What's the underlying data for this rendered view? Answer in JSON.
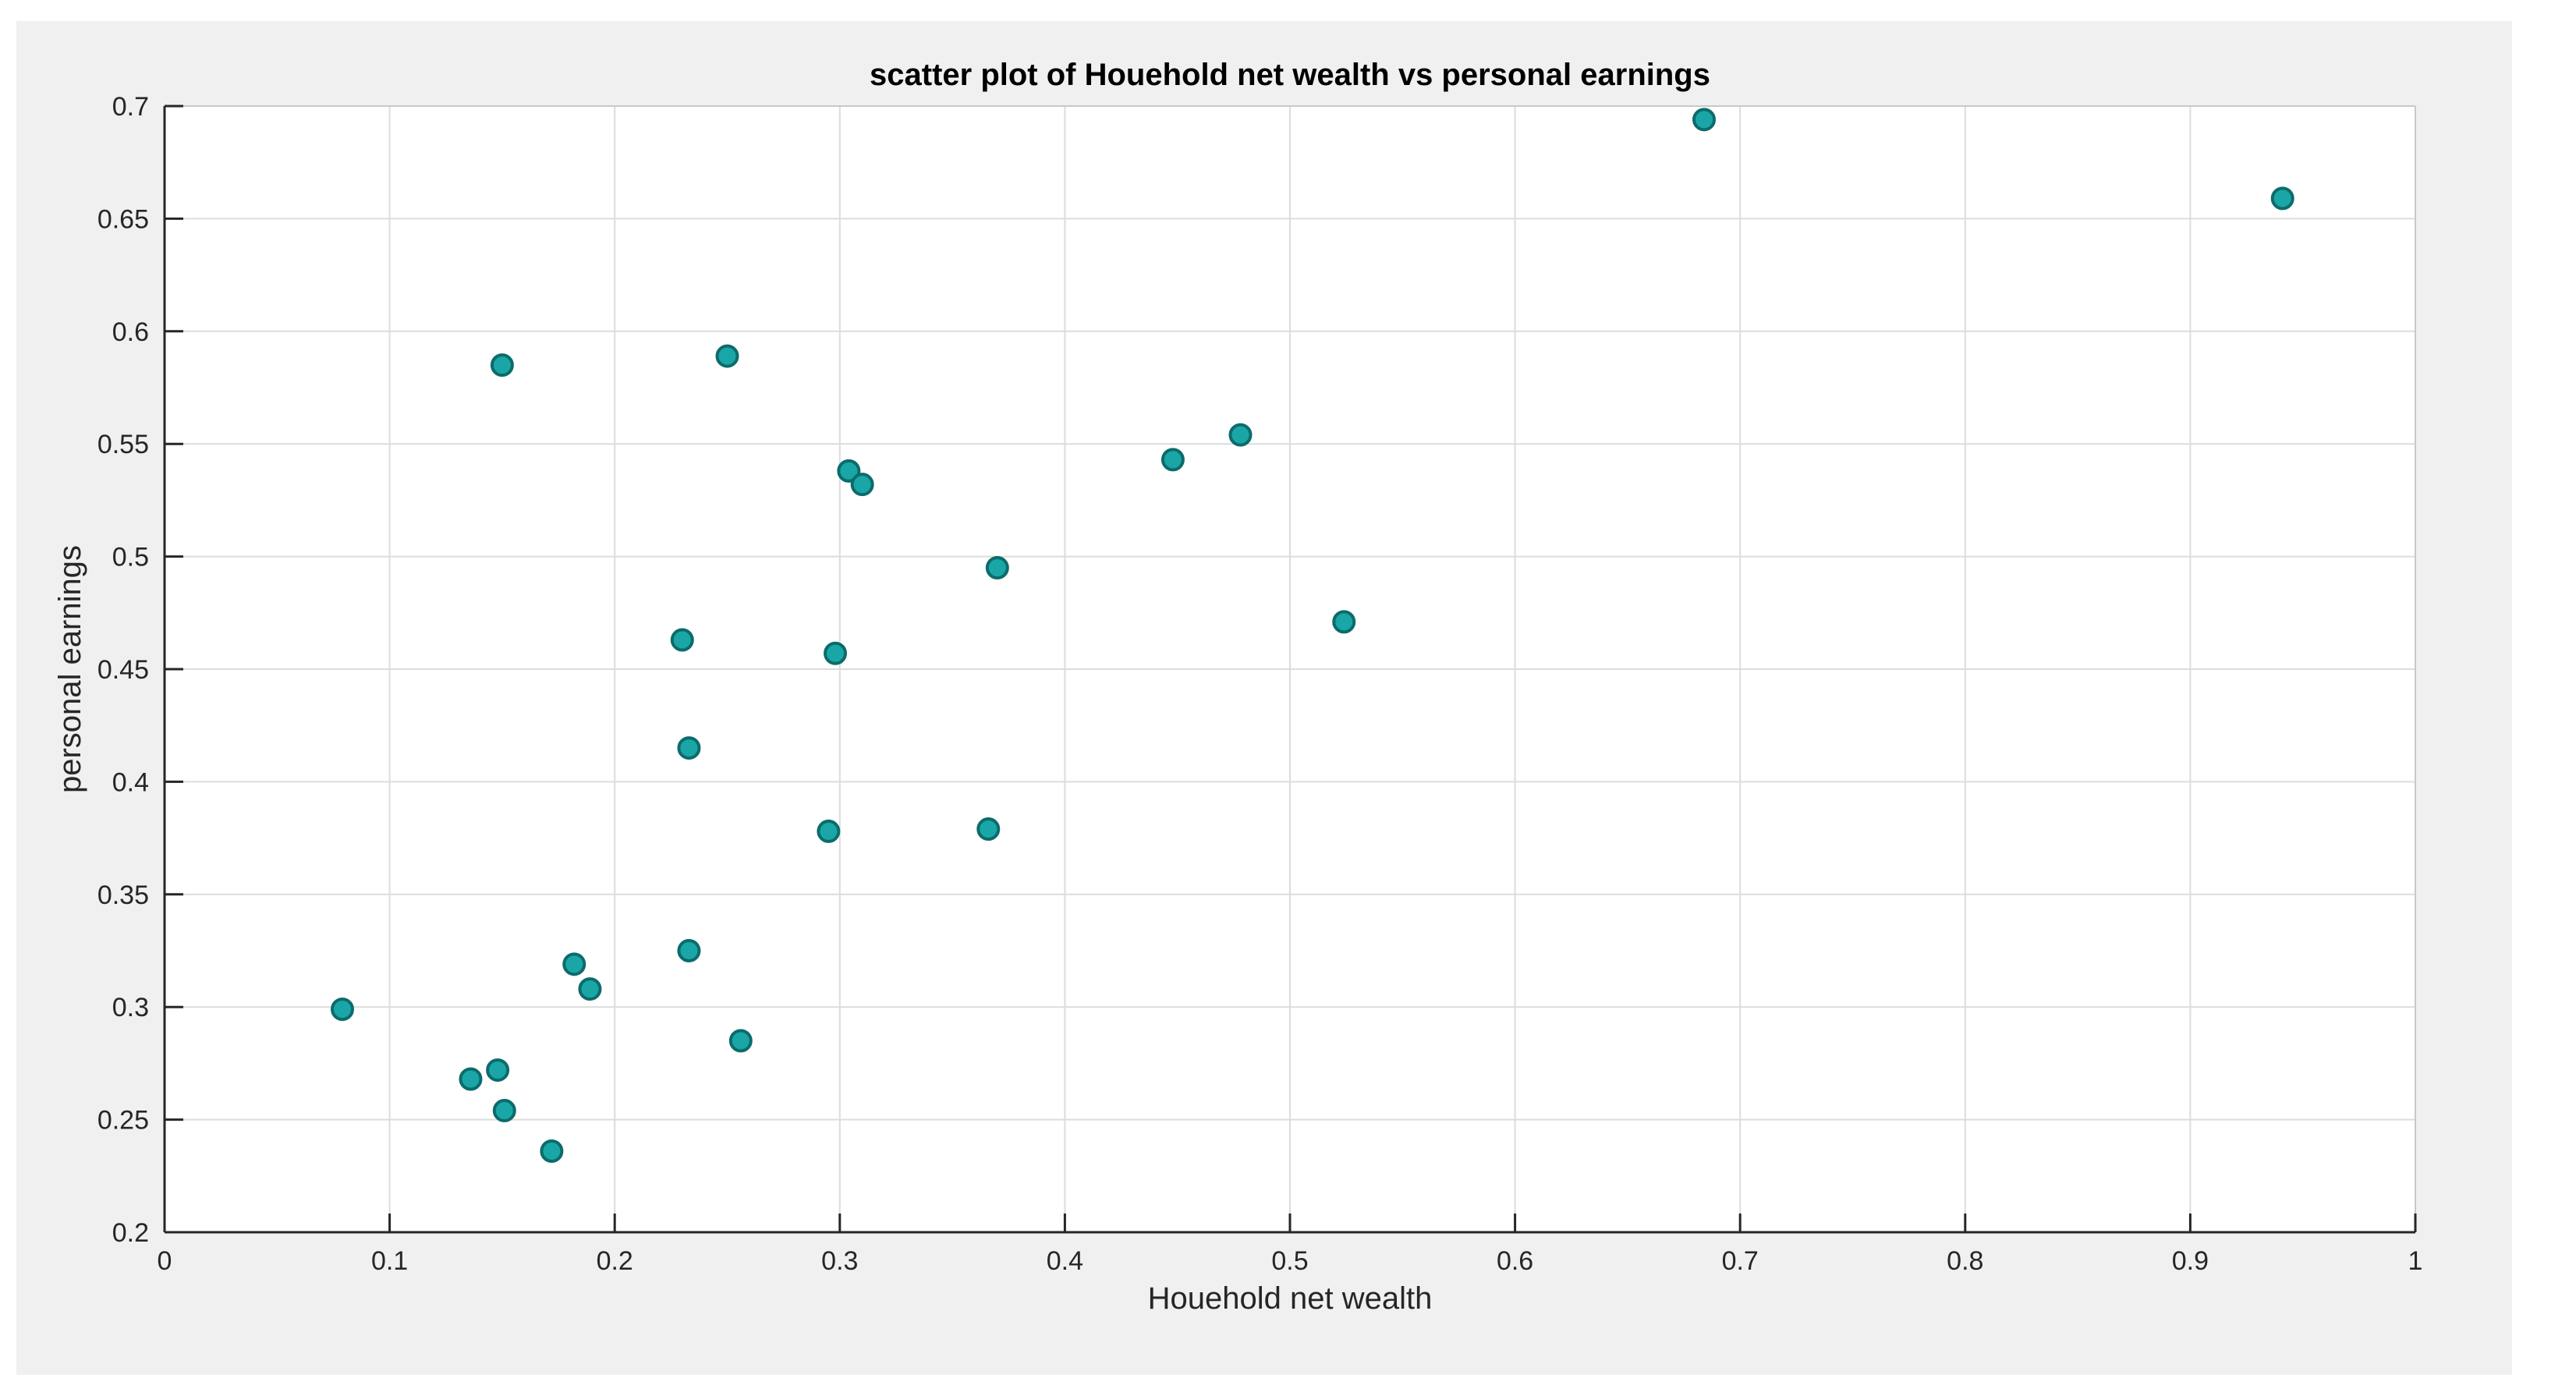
{
  "chart_data": {
    "type": "scatter",
    "title": "scatter plot of Houehold net wealth vs personal earnings",
    "xlabel": "Houehold net wealth",
    "ylabel": "personal earnings",
    "xlim": [
      0,
      1
    ],
    "ylim": [
      0.2,
      0.7
    ],
    "grid": true,
    "xticks": [
      0,
      0.1,
      0.2,
      0.3,
      0.4,
      0.5,
      0.6,
      0.7,
      0.8,
      0.9,
      1
    ],
    "xtick_labels": [
      "0",
      "0.1",
      "0.2",
      "0.3",
      "0.4",
      "0.5",
      "0.6",
      "0.7",
      "0.8",
      "0.9",
      "1"
    ],
    "yticks": [
      0.2,
      0.25,
      0.3,
      0.35,
      0.4,
      0.45,
      0.5,
      0.55,
      0.6,
      0.65,
      0.7
    ],
    "ytick_labels": [
      "0.2",
      "0.25",
      "0.3",
      "0.35",
      "0.4",
      "0.45",
      "0.5",
      "0.55",
      "0.6",
      "0.65",
      "0.7"
    ],
    "marker_color": "#1aa6a6",
    "marker_edge_color": "#0d6b6b",
    "points": [
      {
        "x": 0.079,
        "y": 0.299
      },
      {
        "x": 0.136,
        "y": 0.268
      },
      {
        "x": 0.148,
        "y": 0.272
      },
      {
        "x": 0.151,
        "y": 0.254
      },
      {
        "x": 0.15,
        "y": 0.585
      },
      {
        "x": 0.172,
        "y": 0.236
      },
      {
        "x": 0.182,
        "y": 0.319
      },
      {
        "x": 0.189,
        "y": 0.308
      },
      {
        "x": 0.23,
        "y": 0.463
      },
      {
        "x": 0.233,
        "y": 0.415
      },
      {
        "x": 0.233,
        "y": 0.325
      },
      {
        "x": 0.25,
        "y": 0.589
      },
      {
        "x": 0.256,
        "y": 0.285
      },
      {
        "x": 0.295,
        "y": 0.378
      },
      {
        "x": 0.298,
        "y": 0.457
      },
      {
        "x": 0.304,
        "y": 0.538
      },
      {
        "x": 0.31,
        "y": 0.532
      },
      {
        "x": 0.366,
        "y": 0.379
      },
      {
        "x": 0.37,
        "y": 0.495
      },
      {
        "x": 0.448,
        "y": 0.543
      },
      {
        "x": 0.478,
        "y": 0.554
      },
      {
        "x": 0.524,
        "y": 0.471
      },
      {
        "x": 0.684,
        "y": 0.694
      },
      {
        "x": 0.941,
        "y": 0.659
      }
    ]
  }
}
